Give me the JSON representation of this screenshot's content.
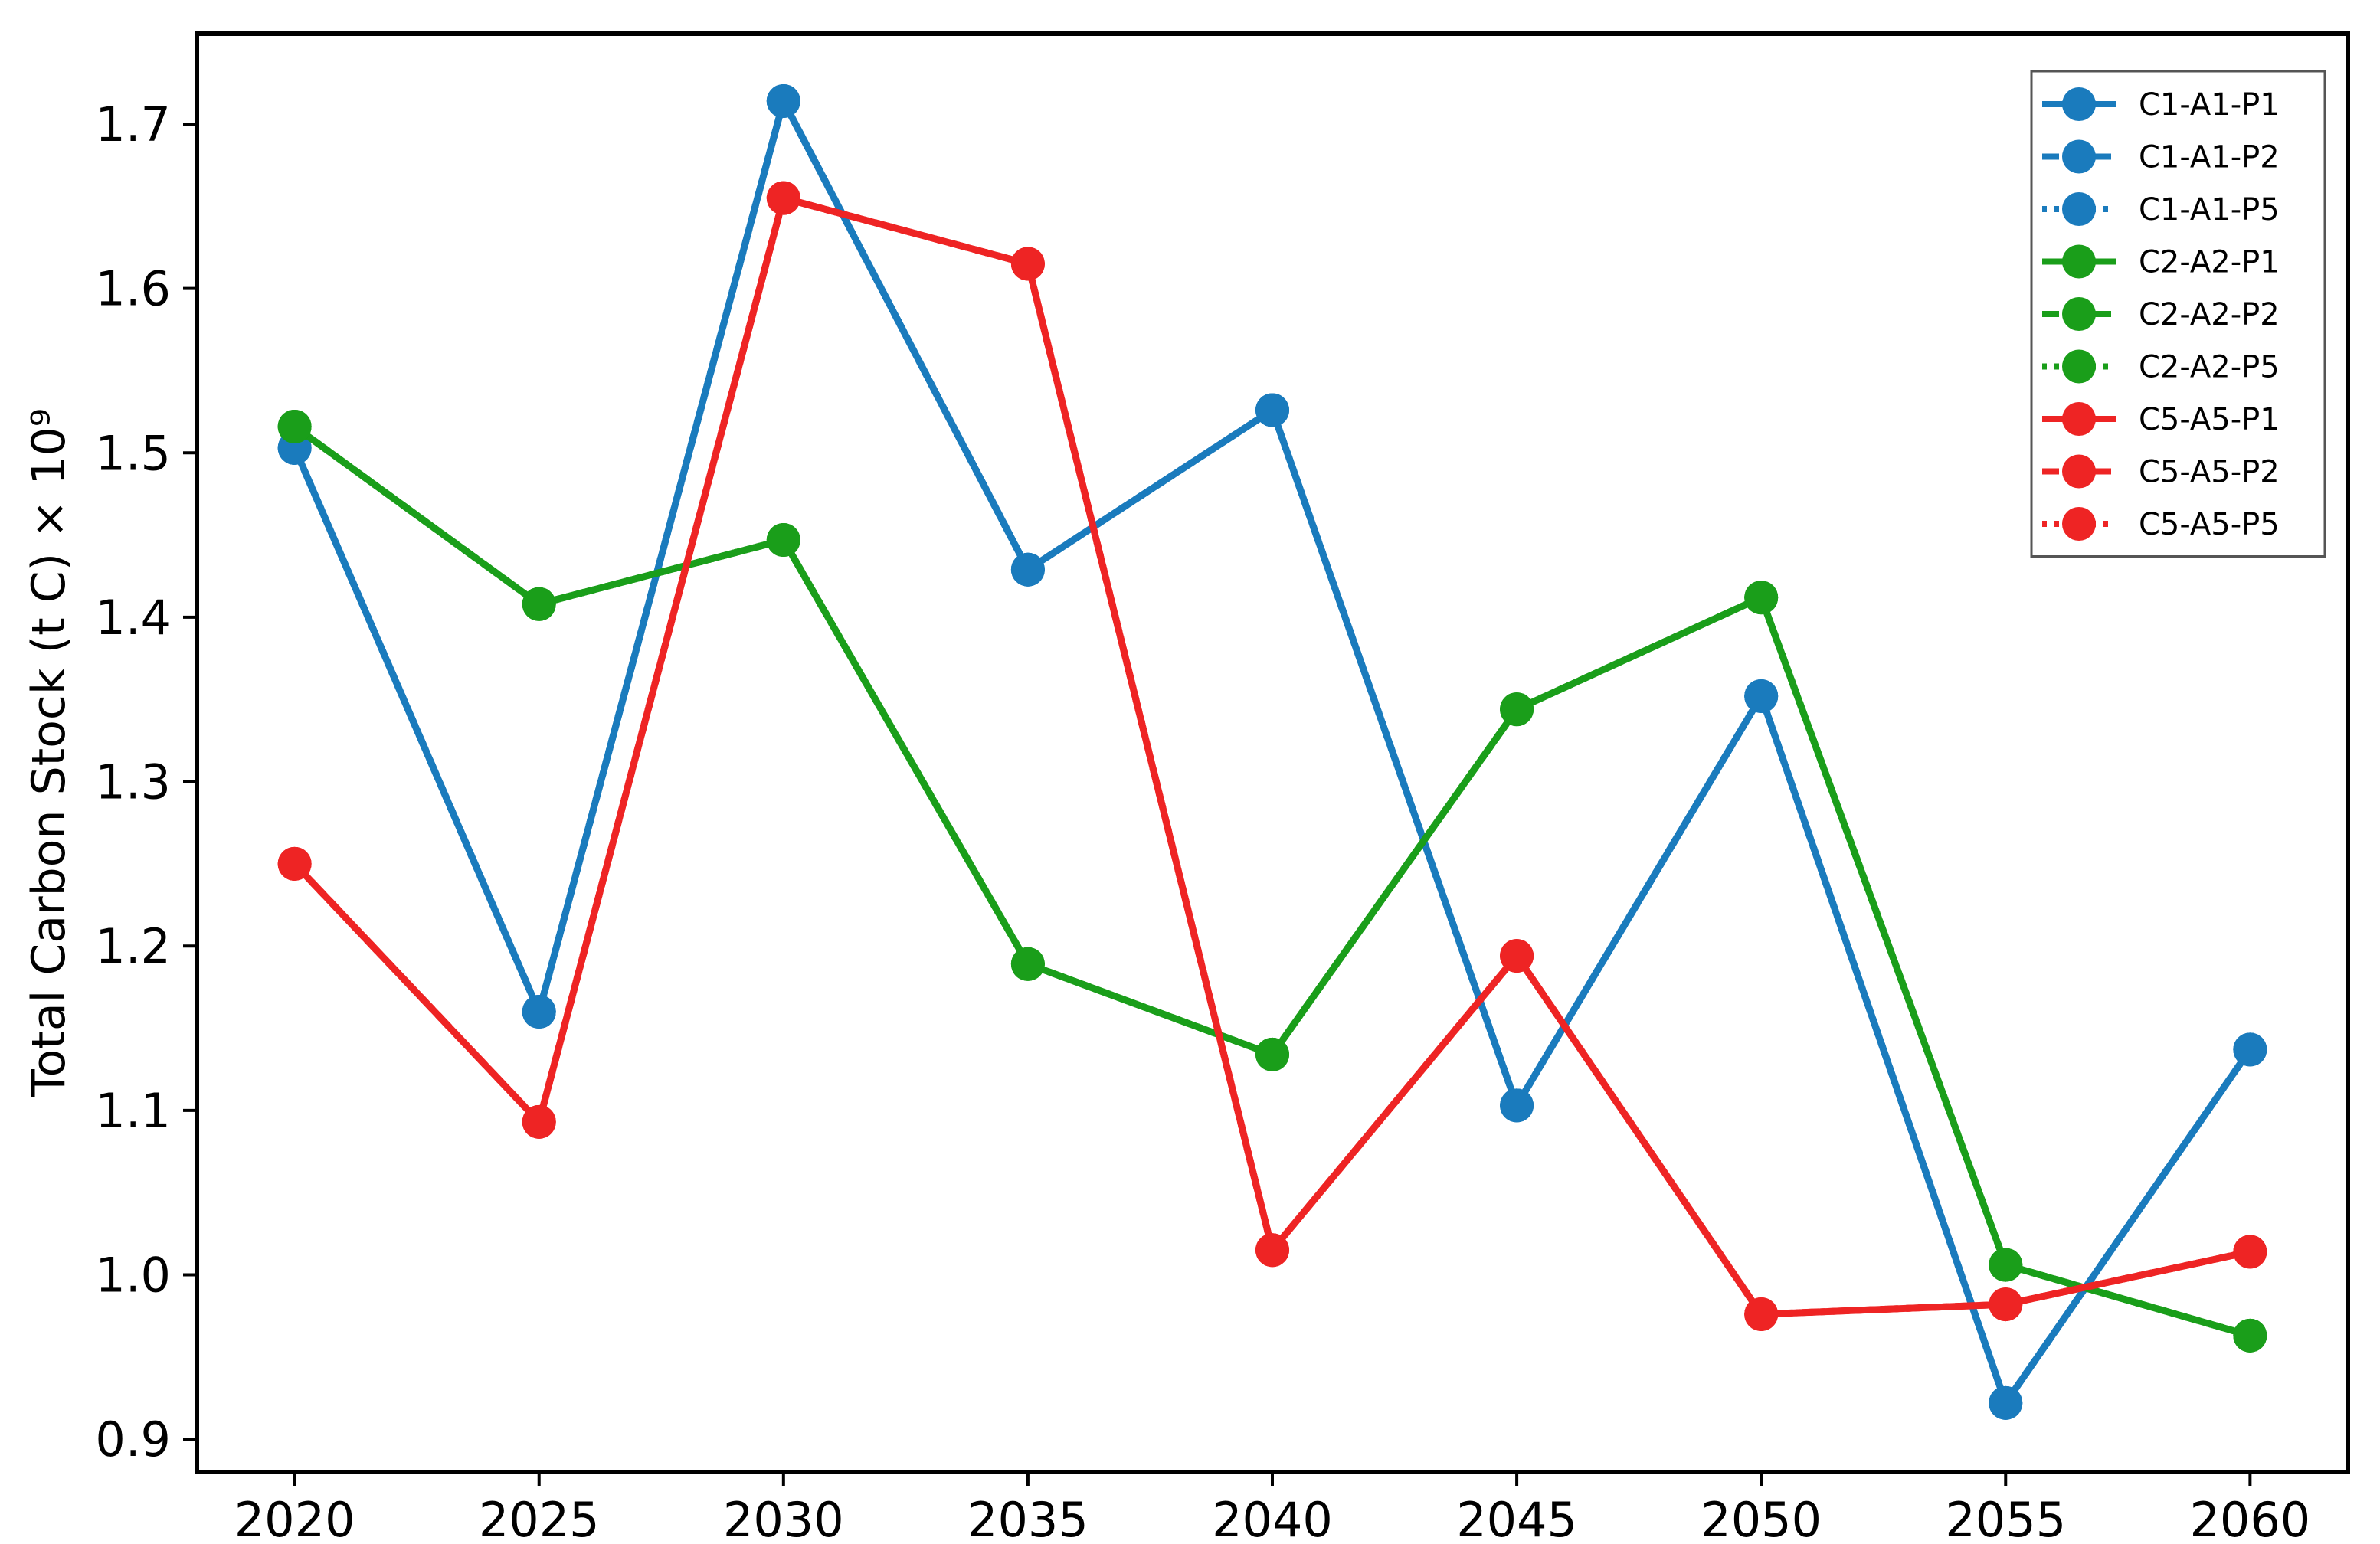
{
  "chart_data": {
    "type": "line",
    "title": "",
    "xlabel": "",
    "ylabel": "Total Carbon Stock (t C) × 10⁹",
    "x": [
      2020,
      2025,
      2030,
      2035,
      2040,
      2045,
      2050,
      2055,
      2060
    ],
    "x_ticks": [
      "2020",
      "2025",
      "2030",
      "2035",
      "2040",
      "2045",
      "2050",
      "2055",
      "2060"
    ],
    "y_ticks": [
      "0.9",
      "1.0",
      "1.1",
      "1.2",
      "1.3",
      "1.4",
      "1.5",
      "1.6",
      "1.7"
    ],
    "ylim": [
      0.88,
      1.755
    ],
    "xlim": [
      2018,
      2062
    ],
    "grid": false,
    "legend_position": "top-right",
    "colors": {
      "blue": "#1f77b4",
      "green": "#1a9e1a",
      "red": "#ee2424"
    },
    "series": [
      {
        "name": "C1-A1-P1",
        "color": "#1a7bbd",
        "dash": "solid",
        "values": [
          1.503,
          1.16,
          1.714,
          1.429,
          1.526,
          1.103,
          1.352,
          0.922,
          1.137
        ]
      },
      {
        "name": "C1-A1-P2",
        "color": "#1a7bbd",
        "dash": "dashed",
        "values": [
          1.503,
          1.16,
          1.714,
          1.429,
          1.526,
          1.103,
          1.352,
          0.922,
          1.137
        ]
      },
      {
        "name": "C1-A1-P5",
        "color": "#1a7bbd",
        "dash": "dotted",
        "values": [
          1.503,
          1.16,
          1.714,
          1.429,
          1.526,
          1.103,
          1.352,
          0.922,
          1.137
        ]
      },
      {
        "name": "C2-A2-P1",
        "color": "#1a9e1a",
        "dash": "solid",
        "values": [
          1.516,
          1.408,
          1.447,
          1.189,
          1.134,
          1.344,
          1.412,
          1.006,
          0.963
        ]
      },
      {
        "name": "C2-A2-P2",
        "color": "#1a9e1a",
        "dash": "dashed",
        "values": [
          1.516,
          1.408,
          1.447,
          1.189,
          1.134,
          1.344,
          1.412,
          1.006,
          0.963
        ]
      },
      {
        "name": "C2-A2-P5",
        "color": "#1a9e1a",
        "dash": "dotted",
        "values": [
          1.516,
          1.408,
          1.447,
          1.189,
          1.134,
          1.344,
          1.412,
          1.006,
          0.963
        ]
      },
      {
        "name": "C5-A5-P1",
        "color": "#ee2424",
        "dash": "solid",
        "values": [
          1.25,
          1.093,
          1.655,
          1.615,
          1.015,
          1.194,
          0.976,
          0.982,
          1.014
        ]
      },
      {
        "name": "C5-A5-P2",
        "color": "#ee2424",
        "dash": "dashed",
        "values": [
          1.25,
          1.093,
          1.655,
          1.615,
          1.015,
          1.194,
          0.976,
          0.982,
          1.014
        ]
      },
      {
        "name": "C5-A5-P5",
        "color": "#ee2424",
        "dash": "dotted",
        "values": [
          1.25,
          1.093,
          1.655,
          1.615,
          1.015,
          1.194,
          0.976,
          0.982,
          1.014
        ]
      }
    ]
  }
}
